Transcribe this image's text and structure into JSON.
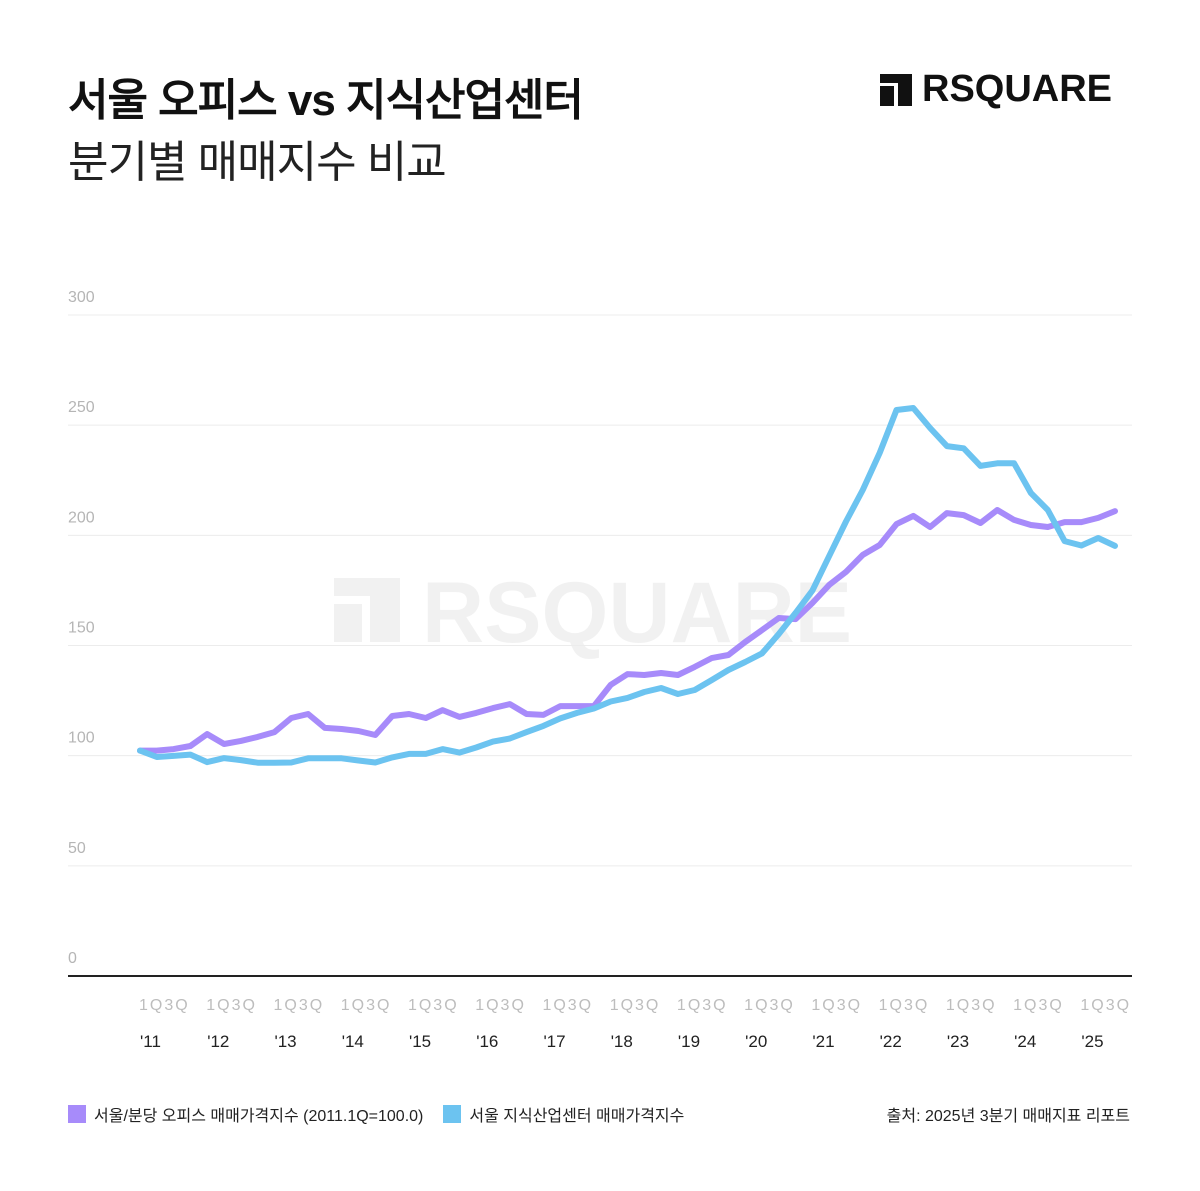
{
  "header": {
    "title": "서울 오피스 vs 지식산업센터",
    "subtitle": "분기별 매매지수 비교",
    "logo_text": "RSQUARE"
  },
  "watermark": "RSQUARE",
  "source": "출처: 2025년 3분기 매매지표 리포트",
  "colors": {
    "office": "#a78bfa",
    "kic": "#6cc3f0",
    "grid": "#ececec",
    "axis": "#222222"
  },
  "chart_data": {
    "type": "line",
    "title": "서울 오피스 vs 지식산업센터 분기별 매매지수 비교",
    "xlabel": "",
    "ylabel": "",
    "ylim": [
      0,
      300
    ],
    "yticks": [
      "0",
      "50",
      "100",
      "150",
      "200",
      "250",
      "300"
    ],
    "grid": true,
    "legend_position": "bottom-left",
    "x_start": "2011 1Q",
    "x_end": "2025 3Q",
    "quarter_tick_label": "1Q3Q",
    "year_labels": [
      "'11",
      "'12",
      "'13",
      "'14",
      "'15",
      "'16",
      "'17",
      "'18",
      "'19",
      "'20",
      "'21",
      "'22",
      "'23",
      "'24",
      "'25"
    ],
    "series": [
      {
        "name": "서울/분당 오피스 매매가격지수 (2011.1Q=100.0)",
        "color": "#a78bfa",
        "values": [
          102.3,
          102.3,
          103,
          104.4,
          109.8,
          105.3,
          106.7,
          108.5,
          110.7,
          117.1,
          118.9,
          112.6,
          112.1,
          111.2,
          109.4,
          118,
          118.9,
          117.1,
          120.7,
          117.6,
          119.4,
          121.6,
          123.4,
          118.9,
          118.5,
          122.5,
          122.5,
          122.5,
          132.1,
          137,
          136.6,
          137.5,
          136.6,
          140.3,
          144.3,
          145.7,
          151.6,
          157,
          162.5,
          162,
          169.3,
          177.5,
          183.4,
          191.1,
          195.6,
          205.1,
          208.8,
          203.8,
          210.1,
          209.2,
          205.6,
          211.5,
          207,
          204.7,
          203.8,
          206,
          206,
          207.9,
          211
        ]
      },
      {
        "name": "서울 지식산업센터 매매가격지수",
        "color": "#6cc3f0",
        "values": [
          102.3,
          99.4,
          99.9,
          100.5,
          97.1,
          98.9,
          98,
          96.8,
          96.8,
          96.9,
          98.8,
          98.8,
          98.8,
          97.8,
          96.9,
          99.2,
          100.8,
          100.8,
          103,
          101.4,
          103.7,
          106.4,
          107.8,
          110.7,
          113.5,
          116.9,
          119.4,
          121.4,
          124.6,
          126.2,
          128.9,
          130.7,
          128,
          129.8,
          134.3,
          138.9,
          142.5,
          146.4,
          155.2,
          164.8,
          174.9,
          190.6,
          206.3,
          220.6,
          237.4,
          256.9,
          257.8,
          248.7,
          240.5,
          239.5,
          231.5,
          232.7,
          232.7,
          219.2,
          211.5,
          197.4,
          195.4,
          198.8,
          195.2
        ]
      }
    ]
  }
}
